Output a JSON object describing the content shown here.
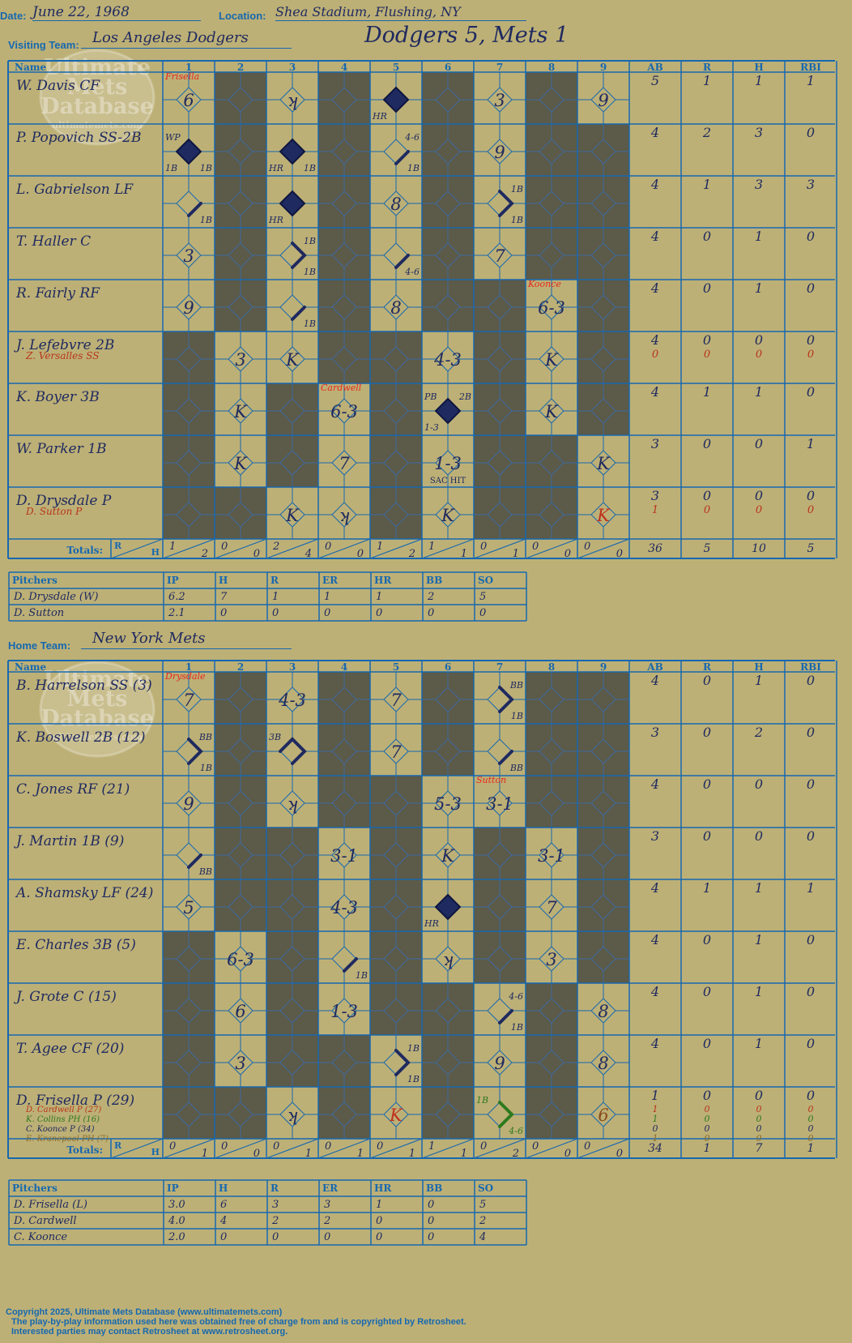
{
  "header": {
    "date_label": "Date:",
    "date": "June 22, 1968",
    "location_label": "Location:",
    "location": "Shea Stadium, Flushing, NY",
    "visiting_label": "Visiting Team:",
    "visiting_team": "Los Angeles Dodgers",
    "result": "Dodgers 5, Mets 1",
    "home_label": "Home Team:",
    "home_team": "New York Mets"
  },
  "watermark": [
    "Ultimate",
    "Mets",
    "Database",
    "ultimatemets.com"
  ],
  "columns": {
    "name": "Name",
    "innings": [
      "1",
      "2",
      "3",
      "4",
      "5",
      "6",
      "7",
      "8",
      "9"
    ],
    "stats": [
      "AB",
      "R",
      "H",
      "RBI"
    ],
    "totals_label": "Totals:",
    "r": "R",
    "h": "H"
  },
  "pitcher_columns": [
    "Pitchers",
    "IP",
    "H",
    "R",
    "ER",
    "HR",
    "BB",
    "SO"
  ],
  "visiting": {
    "batters": [
      {
        "name": "W. Davis CF",
        "ab": "5",
        "r": "1",
        "h": "1",
        "rbi": "1"
      },
      {
        "name": "P. Popovich SS-2B",
        "ab": "4",
        "r": "2",
        "h": "3",
        "rbi": "0"
      },
      {
        "name": "L. Gabrielson LF",
        "ab": "4",
        "r": "1",
        "h": "3",
        "rbi": "3"
      },
      {
        "name": "T. Haller C",
        "ab": "4",
        "r": "0",
        "h": "1",
        "rbi": "0"
      },
      {
        "name": "R. Fairly RF",
        "ab": "4",
        "r": "0",
        "h": "1",
        "rbi": "0"
      },
      {
        "name": "J. Lefebvre 2B",
        "ab": "4",
        "r": "0",
        "h": "0",
        "rbi": "0",
        "sub": [
          {
            "name": "Z. Versalles SS",
            "ab": "0",
            "r": "0",
            "h": "0",
            "rbi": "0",
            "color": "#b8341c"
          }
        ]
      },
      {
        "name": "K. Boyer 3B",
        "ab": "4",
        "r": "1",
        "h": "1",
        "rbi": "0"
      },
      {
        "name": "W. Parker 1B",
        "ab": "3",
        "r": "0",
        "h": "0",
        "rbi": "1"
      },
      {
        "name": "D. Drysdale P",
        "ab": "3",
        "r": "0",
        "h": "0",
        "rbi": "0",
        "sub": [
          {
            "name": "D. Sutton P",
            "ab": "1",
            "r": "0",
            "h": "0",
            "rbi": "0",
            "color": "#b8341c"
          }
        ]
      }
    ],
    "dark": [
      [
        0,
        1,
        0,
        1,
        0,
        1,
        0,
        1,
        0
      ],
      [
        0,
        1,
        0,
        1,
        0,
        1,
        0,
        1,
        1
      ],
      [
        0,
        1,
        0,
        1,
        0,
        1,
        0,
        1,
        1
      ],
      [
        0,
        1,
        0,
        1,
        0,
        1,
        0,
        1,
        1
      ],
      [
        0,
        1,
        0,
        1,
        0,
        1,
        1,
        0,
        1
      ],
      [
        1,
        0,
        0,
        1,
        1,
        0,
        1,
        0,
        1
      ],
      [
        1,
        0,
        1,
        0,
        1,
        0,
        1,
        0,
        1
      ],
      [
        1,
        0,
        1,
        0,
        1,
        0,
        1,
        1,
        0
      ],
      [
        1,
        1,
        0,
        0,
        1,
        0,
        1,
        1,
        0
      ]
    ],
    "marks": [
      {
        "r": 0,
        "c": 0,
        "t": "6"
      },
      {
        "r": 0,
        "c": 0,
        "red": "Frisella"
      },
      {
        "r": 0,
        "c": 2,
        "t": "ʞ"
      },
      {
        "r": 0,
        "c": 4,
        "run": true
      },
      {
        "r": 0,
        "c": 4,
        "bl": "HR"
      },
      {
        "r": 0,
        "c": 6,
        "t": "3"
      },
      {
        "r": 0,
        "c": 8,
        "t": "9"
      },
      {
        "r": 1,
        "c": 0,
        "run": true
      },
      {
        "r": 1,
        "c": 0,
        "tl": "WP"
      },
      {
        "r": 1,
        "c": 0,
        "bl": "1B"
      },
      {
        "r": 1,
        "c": 0,
        "br": "1B"
      },
      {
        "r": 1,
        "c": 2,
        "run": true
      },
      {
        "r": 1,
        "c": 2,
        "bl": "HR"
      },
      {
        "r": 1,
        "c": 2,
        "br": "1B"
      },
      {
        "r": 1,
        "c": 4,
        "tr": "4-6"
      },
      {
        "r": 1,
        "c": 4,
        "br": "1B"
      },
      {
        "r": 1,
        "c": 4,
        "path": "1"
      },
      {
        "r": 1,
        "c": 6,
        "t": "9"
      },
      {
        "r": 2,
        "c": 0,
        "path": "1"
      },
      {
        "r": 2,
        "c": 0,
        "br": "1B"
      },
      {
        "r": 2,
        "c": 2,
        "run": true
      },
      {
        "r": 2,
        "c": 2,
        "bl": "HR"
      },
      {
        "r": 2,
        "c": 4,
        "t": "8"
      },
      {
        "r": 2,
        "c": 6,
        "path": "12"
      },
      {
        "r": 2,
        "c": 6,
        "tr": "1B"
      },
      {
        "r": 2,
        "c": 6,
        "br": "1B"
      },
      {
        "r": 3,
        "c": 0,
        "t": "3"
      },
      {
        "r": 3,
        "c": 2,
        "path": "12"
      },
      {
        "r": 3,
        "c": 2,
        "tr": "1B"
      },
      {
        "r": 3,
        "c": 2,
        "br": "1B"
      },
      {
        "r": 3,
        "c": 4,
        "path": "1"
      },
      {
        "r": 3,
        "c": 4,
        "br": "4-6"
      },
      {
        "r": 3,
        "c": 6,
        "t": "7"
      },
      {
        "r": 4,
        "c": 0,
        "t": "9"
      },
      {
        "r": 4,
        "c": 2,
        "path": "1"
      },
      {
        "r": 4,
        "c": 2,
        "br": "1B"
      },
      {
        "r": 4,
        "c": 4,
        "t": "8"
      },
      {
        "r": 4,
        "c": 7,
        "t": "6-3"
      },
      {
        "r": 4,
        "c": 7,
        "red": "Koonce"
      },
      {
        "r": 5,
        "c": 1,
        "t": "3"
      },
      {
        "r": 5,
        "c": 2,
        "t": "K"
      },
      {
        "r": 5,
        "c": 5,
        "t": "4-3"
      },
      {
        "r": 5,
        "c": 7,
        "t": "K"
      },
      {
        "r": 6,
        "c": 1,
        "t": "K"
      },
      {
        "r": 6,
        "c": 3,
        "t": "6-3"
      },
      {
        "r": 6,
        "c": 3,
        "red": "Cardwell"
      },
      {
        "r": 6,
        "c": 5,
        "run": true
      },
      {
        "r": 6,
        "c": 5,
        "tl": "PB"
      },
      {
        "r": 6,
        "c": 5,
        "tr": "2B"
      },
      {
        "r": 6,
        "c": 5,
        "bl": "1-3"
      },
      {
        "r": 6,
        "c": 7,
        "t": "K"
      },
      {
        "r": 7,
        "c": 1,
        "t": "K"
      },
      {
        "r": 7,
        "c": 3,
        "t": "7"
      },
      {
        "r": 7,
        "c": 5,
        "t": "1-3"
      },
      {
        "r": 7,
        "c": 5,
        "bot": "SAC HIT"
      },
      {
        "r": 7,
        "c": 8,
        "t": "K"
      },
      {
        "r": 8,
        "c": 2,
        "t": "K"
      },
      {
        "r": 8,
        "c": 3,
        "t": "ʞ"
      },
      {
        "r": 8,
        "c": 5,
        "t": "K"
      },
      {
        "r": 8,
        "c": 8,
        "t": "K",
        "color": "#c0301c"
      }
    ],
    "totals_rh": [
      [
        "1",
        "2"
      ],
      [
        "0",
        "0"
      ],
      [
        "2",
        "4"
      ],
      [
        "0",
        "0"
      ],
      [
        "1",
        "2"
      ],
      [
        "1",
        "1"
      ],
      [
        "0",
        "1"
      ],
      [
        "0",
        "0"
      ],
      [
        "0",
        "0"
      ]
    ],
    "totals": {
      "ab": "36",
      "r": "5",
      "h": "10",
      "rbi": "5"
    },
    "pitchers": [
      {
        "name": "D. Drysdale (W)",
        "ip": "6.2",
        "h": "7",
        "r": "1",
        "er": "1",
        "hr": "1",
        "bb": "2",
        "so": "5"
      },
      {
        "name": "D. Sutton",
        "ip": "2.1",
        "h": "0",
        "r": "0",
        "er": "0",
        "hr": "0",
        "bb": "0",
        "so": "0"
      }
    ]
  },
  "home": {
    "batters": [
      {
        "name": "B. Harrelson SS (3)",
        "ab": "4",
        "r": "0",
        "h": "1",
        "rbi": "0"
      },
      {
        "name": "K. Boswell 2B (12)",
        "ab": "3",
        "r": "0",
        "h": "2",
        "rbi": "0"
      },
      {
        "name": "C. Jones RF (21)",
        "ab": "4",
        "r": "0",
        "h": "0",
        "rbi": "0"
      },
      {
        "name": "J. Martin 1B (9)",
        "ab": "3",
        "r": "0",
        "h": "0",
        "rbi": "0"
      },
      {
        "name": "A. Shamsky LF (24)",
        "ab": "4",
        "r": "1",
        "h": "1",
        "rbi": "1"
      },
      {
        "name": "E. Charles 3B (5)",
        "ab": "4",
        "r": "0",
        "h": "1",
        "rbi": "0"
      },
      {
        "name": "J. Grote C (15)",
        "ab": "4",
        "r": "0",
        "h": "1",
        "rbi": "0"
      },
      {
        "name": "T. Agee CF (20)",
        "ab": "4",
        "r": "0",
        "h": "1",
        "rbi": "0"
      },
      {
        "name": "D. Frisella P (29)",
        "ab": "1",
        "r": "0",
        "h": "0",
        "rbi": "0",
        "sub": [
          {
            "name": "D. Cardwell P (27)",
            "ab": "1",
            "r": "0",
            "h": "0",
            "rbi": "0",
            "color": "#b8341c"
          },
          {
            "name": "K. Collins PH (16)",
            "ab": "1",
            "r": "0",
            "h": "0",
            "rbi": "0",
            "color": "#2e7a1e"
          },
          {
            "name": "C. Koonce P (34)",
            "ab": "0",
            "r": "0",
            "h": "0",
            "rbi": "0",
            "color": "#1f2a60"
          },
          {
            "name": "E. Kranepool PH (7)",
            "ab": "1",
            "r": "0",
            "h": "0",
            "rbi": "0",
            "color": "#8a6a2a"
          }
        ]
      }
    ],
    "dark": [
      [
        0,
        1,
        0,
        1,
        0,
        1,
        0,
        1,
        1
      ],
      [
        0,
        1,
        0,
        1,
        0,
        1,
        0,
        1,
        1
      ],
      [
        0,
        1,
        0,
        1,
        1,
        0,
        0,
        1,
        1
      ],
      [
        0,
        1,
        1,
        0,
        1,
        0,
        1,
        0,
        1
      ],
      [
        0,
        1,
        1,
        0,
        1,
        0,
        1,
        0,
        1
      ],
      [
        1,
        0,
        1,
        0,
        1,
        0,
        1,
        0,
        1
      ],
      [
        1,
        0,
        1,
        0,
        1,
        1,
        0,
        1,
        0
      ],
      [
        1,
        0,
        1,
        1,
        0,
        1,
        0,
        1,
        0
      ],
      [
        1,
        1,
        0,
        1,
        0,
        1,
        0,
        1,
        0
      ]
    ],
    "marks": [
      {
        "r": 0,
        "c": 0,
        "t": "7"
      },
      {
        "r": 0,
        "c": 0,
        "red": "Drysdale"
      },
      {
        "r": 0,
        "c": 2,
        "t": "4-3"
      },
      {
        "r": 0,
        "c": 4,
        "t": "7"
      },
      {
        "r": 0,
        "c": 6,
        "path": "12"
      },
      {
        "r": 0,
        "c": 6,
        "tr": "BB"
      },
      {
        "r": 0,
        "c": 6,
        "br": "1B"
      },
      {
        "r": 1,
        "c": 0,
        "path": "12"
      },
      {
        "r": 1,
        "c": 0,
        "tr": "BB"
      },
      {
        "r": 1,
        "c": 0,
        "br": "1B"
      },
      {
        "r": 1,
        "c": 2,
        "path": "123"
      },
      {
        "r": 1,
        "c": 2,
        "tl": "3B"
      },
      {
        "r": 1,
        "c": 4,
        "t": "7"
      },
      {
        "r": 1,
        "c": 6,
        "path": "1"
      },
      {
        "r": 1,
        "c": 6,
        "br": "BB"
      },
      {
        "r": 2,
        "c": 0,
        "t": "9"
      },
      {
        "r": 2,
        "c": 2,
        "t": "ʞ"
      },
      {
        "r": 2,
        "c": 5,
        "t": "5-3"
      },
      {
        "r": 2,
        "c": 6,
        "t": "3-1"
      },
      {
        "r": 2,
        "c": 6,
        "red": "Sutton"
      },
      {
        "r": 3,
        "c": 0,
        "path": "1"
      },
      {
        "r": 3,
        "c": 0,
        "br": "BB"
      },
      {
        "r": 3,
        "c": 3,
        "t": "3-1"
      },
      {
        "r": 3,
        "c": 5,
        "t": "K"
      },
      {
        "r": 3,
        "c": 7,
        "t": "3-1"
      },
      {
        "r": 4,
        "c": 0,
        "t": "5"
      },
      {
        "r": 4,
        "c": 3,
        "t": "4-3"
      },
      {
        "r": 4,
        "c": 5,
        "run": true
      },
      {
        "r": 4,
        "c": 5,
        "bl": "HR"
      },
      {
        "r": 4,
        "c": 7,
        "t": "7"
      },
      {
        "r": 5,
        "c": 1,
        "t": "6-3"
      },
      {
        "r": 5,
        "c": 3,
        "path": "1"
      },
      {
        "r": 5,
        "c": 3,
        "br": "1B"
      },
      {
        "r": 5,
        "c": 5,
        "t": "ʞ"
      },
      {
        "r": 5,
        "c": 7,
        "t": "3"
      },
      {
        "r": 6,
        "c": 1,
        "t": "6"
      },
      {
        "r": 6,
        "c": 3,
        "t": "1-3"
      },
      {
        "r": 6,
        "c": 6,
        "path": "1"
      },
      {
        "r": 6,
        "c": 6,
        "tr": "4-6"
      },
      {
        "r": 6,
        "c": 6,
        "br": "1B"
      },
      {
        "r": 6,
        "c": 8,
        "t": "8"
      },
      {
        "r": 7,
        "c": 1,
        "t": "3"
      },
      {
        "r": 7,
        "c": 4,
        "path": "12"
      },
      {
        "r": 7,
        "c": 4,
        "tr": "1B"
      },
      {
        "r": 7,
        "c": 4,
        "br": "1B"
      },
      {
        "r": 7,
        "c": 6,
        "t": "9"
      },
      {
        "r": 7,
        "c": 8,
        "t": "8"
      },
      {
        "r": 8,
        "c": 2,
        "t": "ʞ"
      },
      {
        "r": 8,
        "c": 4,
        "t": "K",
        "color": "#c0301c"
      },
      {
        "r": 8,
        "c": 6,
        "path": "12",
        "color": "#2e7a1e"
      },
      {
        "r": 8,
        "c": 6,
        "tl": "1B",
        "color": "#2e7a1e"
      },
      {
        "r": 8,
        "c": 6,
        "br": "4-6",
        "color": "#2e7a1e"
      },
      {
        "r": 8,
        "c": 8,
        "t": "6",
        "color": "#8a4a1a"
      }
    ],
    "totals_rh": [
      [
        "0",
        "1"
      ],
      [
        "0",
        "0"
      ],
      [
        "0",
        "1"
      ],
      [
        "0",
        "1"
      ],
      [
        "0",
        "1"
      ],
      [
        "1",
        "1"
      ],
      [
        "0",
        "2"
      ],
      [
        "0",
        "0"
      ],
      [
        "0",
        "0"
      ]
    ],
    "totals": {
      "ab": "34",
      "r": "1",
      "h": "7",
      "rbi": "1"
    },
    "pitchers": [
      {
        "name": "D. Frisella (L)",
        "ip": "3.0",
        "h": "6",
        "r": "3",
        "er": "3",
        "hr": "1",
        "bb": "0",
        "so": "5"
      },
      {
        "name": "D. Cardwell",
        "ip": "4.0",
        "h": "4",
        "r": "2",
        "er": "2",
        "hr": "0",
        "bb": "0",
        "so": "2"
      },
      {
        "name": "C. Koonce",
        "ip": "2.0",
        "h": "0",
        "r": "0",
        "er": "0",
        "hr": "0",
        "bb": "0",
        "so": "4"
      }
    ]
  },
  "footer": [
    "Copyright 2025, Ultimate Mets Database (www.ultimatemets.com)",
    "The play-by-play information used here was obtained free of charge from and is copyrighted by Retrosheet.",
    "Interested parties may contact Retrosheet at www.retrosheet.org."
  ],
  "colors": {
    "background": "#bdb076",
    "grid": "#1668b0",
    "dark_cell": "#5c5a48",
    "ink": "#1f2a60",
    "note_red": "#e8281c"
  }
}
